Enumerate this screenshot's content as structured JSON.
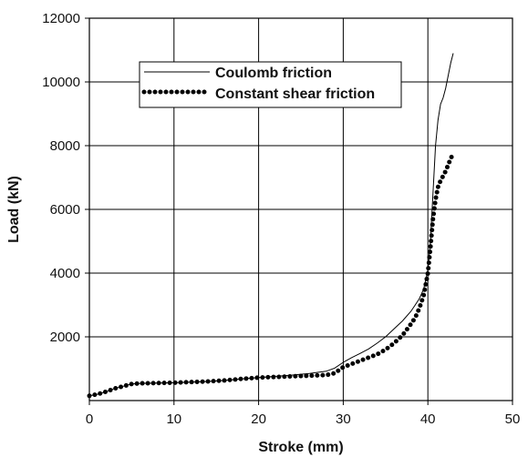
{
  "chart_data": {
    "type": "line",
    "title": "",
    "xlabel": "Stroke (mm)",
    "ylabel": "Load (kN)",
    "xlim": [
      0,
      50
    ],
    "ylim": [
      0,
      12000
    ],
    "x_ticks": [
      0,
      10,
      20,
      30,
      40,
      50
    ],
    "y_ticks": [
      2000,
      4000,
      6000,
      8000,
      10000,
      12000
    ],
    "grid": true,
    "legend_position": "top-left",
    "series": [
      {
        "name": "Coulomb friction",
        "style": "solid",
        "color": "#000000",
        "x": [
          0,
          1,
          2,
          3,
          4,
          5,
          6,
          8,
          10,
          12,
          14,
          16,
          18,
          20,
          22,
          24,
          26,
          28,
          29,
          30,
          31,
          32,
          33,
          34,
          35,
          36,
          37,
          38,
          38.5,
          39,
          39.5,
          40,
          40.3,
          40.6,
          40.9,
          41.2,
          41.5,
          41.8,
          42.1,
          42.4,
          42.7,
          43
        ],
        "y": [
          150,
          200,
          280,
          380,
          450,
          520,
          540,
          550,
          560,
          580,
          600,
          630,
          680,
          720,
          760,
          800,
          850,
          920,
          1020,
          1200,
          1350,
          1480,
          1620,
          1800,
          2000,
          2250,
          2500,
          2800,
          3000,
          3200,
          3500,
          4100,
          5000,
          6500,
          8000,
          8800,
          9300,
          9500,
          9800,
          10200,
          10600,
          10900
        ]
      },
      {
        "name": "Constant shear friction",
        "style": "dotted",
        "color": "#000000",
        "x": [
          0,
          1,
          2,
          3,
          4,
          5,
          6,
          8,
          10,
          12,
          14,
          16,
          18,
          20,
          22,
          24,
          26,
          28,
          29,
          30,
          31,
          32,
          33,
          34,
          35,
          36,
          37,
          38,
          38.5,
          39,
          39.5,
          40,
          40.3,
          40.6,
          40.9,
          41.2,
          41.5,
          41.8,
          42.1,
          42.4,
          42.7,
          43
        ],
        "y": [
          150,
          200,
          280,
          380,
          450,
          520,
          540,
          550,
          560,
          580,
          600,
          630,
          680,
          720,
          740,
          760,
          780,
          800,
          860,
          1050,
          1150,
          1250,
          1350,
          1450,
          1600,
          1800,
          2050,
          2400,
          2600,
          2900,
          3300,
          4000,
          4800,
          5700,
          6300,
          6700,
          6900,
          7050,
          7200,
          7400,
          7600,
          7750
        ]
      }
    ]
  }
}
